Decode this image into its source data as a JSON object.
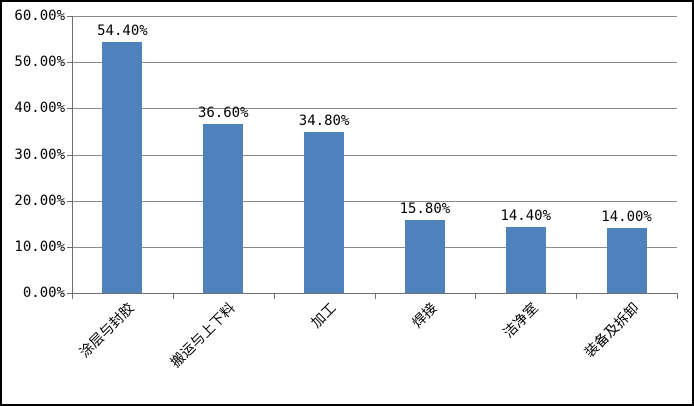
{
  "chart_style": {
    "bar_color": "#4F81BD",
    "gridline_color": "#8C8C8C",
    "axis_color": "#6E6E6E",
    "outer_border_color": "#000000",
    "background_color": "#FFFFFF",
    "label_color": "#000000"
  },
  "chart_data": {
    "type": "bar",
    "title": "",
    "xlabel": "",
    "ylabel": "",
    "categories": [
      "涂层与封胶",
      "搬运与上下料",
      "加工",
      "焊接",
      "洁净室",
      "装备及拆卸"
    ],
    "values": [
      54.4,
      36.6,
      34.8,
      15.8,
      14.4,
      14.0
    ],
    "data_labels": [
      "54.40%",
      "36.60%",
      "34.80%",
      "15.80%",
      "14.40%",
      "14.00%"
    ],
    "ylim": [
      0,
      60
    ],
    "ytick_values": [
      0,
      10,
      20,
      30,
      40,
      50,
      60
    ],
    "ytick_labels": [
      "0.00%",
      "10.00%",
      "20.00%",
      "30.00%",
      "40.00%",
      "50.00%",
      "60.00%"
    ],
    "grid": true,
    "legend": "none",
    "data_label_position": "above-bar",
    "xtick_label_rotation_deg": 45
  }
}
